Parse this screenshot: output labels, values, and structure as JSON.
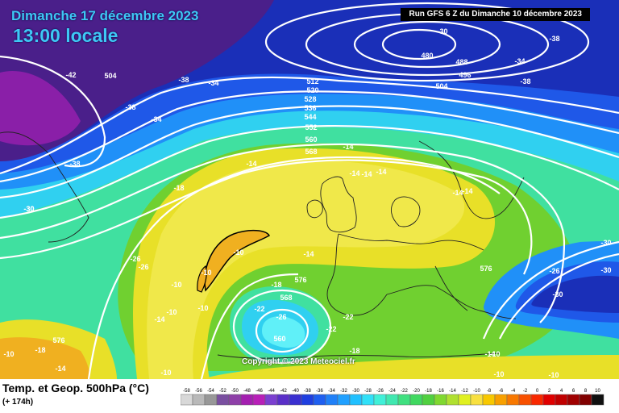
{
  "title": {
    "date": "Dimanche 17 décembre 2023",
    "time": "13:00 locale",
    "run": "Run GFS 6 Z du Dimanche 10 décembre 2023"
  },
  "footer": {
    "variable": "Temp. et Geop. 500hPa (°C)",
    "forecast": "(+ 174h)",
    "copyright": "Copyright © 2023 Meteociel.fr"
  },
  "legend": {
    "values": [
      "-58",
      "-56",
      "-54",
      "-52",
      "-50",
      "-48",
      "-46",
      "-44",
      "-42",
      "-40",
      "-38",
      "-36",
      "-34",
      "-32",
      "-30",
      "-28",
      "-26",
      "-24",
      "-22",
      "-20",
      "-18",
      "-16",
      "-14",
      "-12",
      "-10",
      "-8",
      "-6",
      "-4",
      "-2",
      "0",
      "2",
      "4",
      "6",
      "8",
      "10"
    ],
    "colors": [
      "#d8d8d8",
      "#b9b9b9",
      "#989898",
      "#7a4fa0",
      "#8e3fa8",
      "#a41fb0",
      "#b81fb8",
      "#7b3fd0",
      "#5a2fc8",
      "#3a2fd0",
      "#1f3fe0",
      "#1f5ff0",
      "#2080f8",
      "#20a0ff",
      "#20c0ff",
      "#30e0f8",
      "#40f0d8",
      "#40e8b0",
      "#40e080",
      "#40d860",
      "#50d040",
      "#80d830",
      "#b0e030",
      "#e0f020",
      "#f8e040",
      "#f8c800",
      "#f8a000",
      "#f87800",
      "#f85000",
      "#f82800",
      "#e00000",
      "#c00000",
      "#a00000",
      "#800000",
      "#101010"
    ]
  },
  "geopotential_labels": [
    "504",
    "512",
    "520",
    "528",
    "536",
    "544",
    "552",
    "560",
    "568",
    "480",
    "488",
    "496",
    "504",
    "576",
    "576",
    "568",
    "560",
    "576"
  ],
  "temperature_labels": [
    "-42",
    "-38",
    "-34",
    "-38",
    "-34",
    "-30",
    "-38",
    "-34",
    "-38",
    "-14",
    "-14",
    "-14",
    "-14",
    "-14",
    "-18",
    "-38",
    "-30",
    "-26",
    "-26",
    "-10",
    "-10",
    "-10",
    "-10",
    "-10",
    "-14",
    "-14",
    "-18",
    "-22",
    "-26",
    "-22",
    "-22",
    "-18",
    "-10",
    "-10",
    "-10",
    "-10",
    "-10",
    "-14",
    "-18",
    "-26",
    "-30",
    "-30",
    "-30",
    "-30",
    "-14",
    "-14",
    "-14"
  ]
}
